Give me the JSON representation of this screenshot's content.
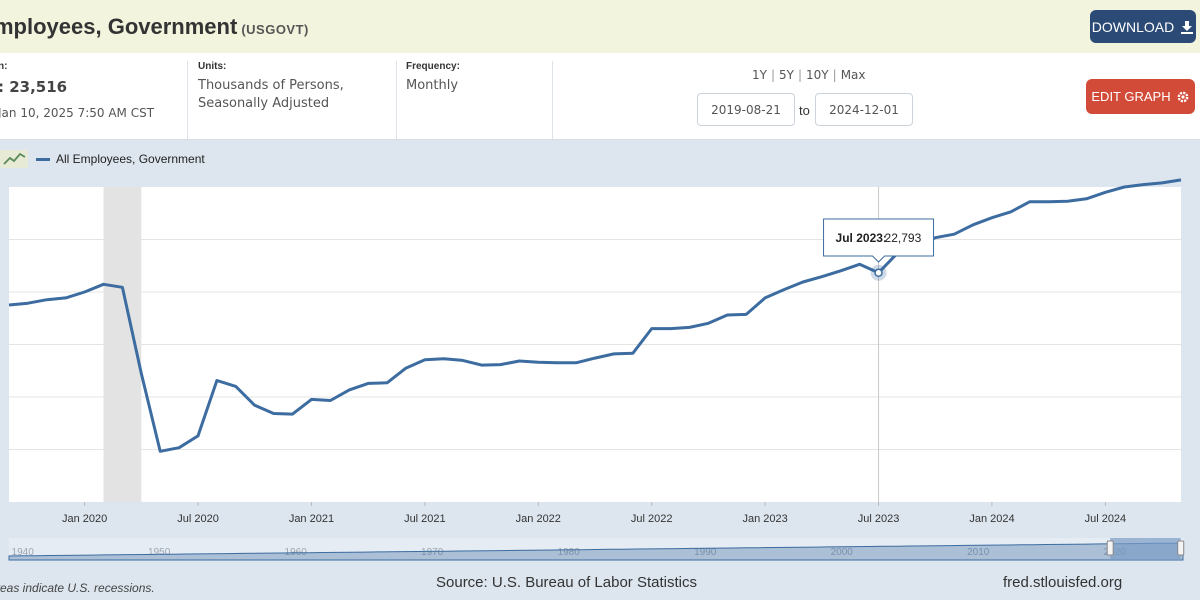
{
  "header": {
    "title": "mployees, Government",
    "series_id": "(USGOVT)",
    "download_label": "DOWNLOAD"
  },
  "meta": {
    "observation_label": "n:",
    "observation_value": ": 23,516",
    "updated": "Jan 10, 2025 7:50 AM CST",
    "units_label": "Units:",
    "units_line1": "Thousands of Persons,",
    "units_line2": "Seasonally Adjusted",
    "frequency_label": "Frequency:",
    "frequency_value": "Monthly"
  },
  "controls": {
    "ranges": [
      "1Y",
      "5Y",
      "10Y",
      "Max"
    ],
    "date_from": "2019-08-21",
    "date_to": "2024-12-01",
    "to_label": "to",
    "edit_label": "EDIT GRAPH"
  },
  "legend": {
    "series_name": "All Employees, Government"
  },
  "footer": {
    "recession_note": "reas indicate U.S. recessions.",
    "source": "Source: U.S. Bureau of Labor Statistics",
    "site": "fred.stlouisfed.org"
  },
  "colors": {
    "series": "#3c6ca0",
    "recession": "#e3e3e3",
    "edit_button": "#d24a38",
    "download_button": "#2b4b76"
  },
  "chart_data": {
    "type": "line",
    "title": "All Employees, Government",
    "ylabel": "Thousands of Persons",
    "x_start": "2019-09",
    "x_end": "2024-11",
    "ylim": [
      20850,
      23520
    ],
    "recession": {
      "start": "2020-02",
      "end": "2020-04"
    },
    "x_ticks": [
      "Jan 2020",
      "Jul 2020",
      "Jan 2021",
      "Jul 2021",
      "Jan 2022",
      "Jul 2022",
      "Jan 2023",
      "Jul 2023",
      "Jan 2024",
      "Jul 2024"
    ],
    "tooltip": {
      "label": "Jul 2023:",
      "value": "22,793",
      "month": "2023-07"
    },
    "series": [
      {
        "name": "All Employees, Government",
        "x": [
          "2019-09",
          "2019-10",
          "2019-11",
          "2019-12",
          "2020-01",
          "2020-02",
          "2020-03",
          "2020-04",
          "2020-05",
          "2020-06",
          "2020-07",
          "2020-08",
          "2020-09",
          "2020-10",
          "2020-11",
          "2020-12",
          "2021-01",
          "2021-02",
          "2021-03",
          "2021-04",
          "2021-05",
          "2021-06",
          "2021-07",
          "2021-08",
          "2021-09",
          "2021-10",
          "2021-11",
          "2021-12",
          "2022-01",
          "2022-02",
          "2022-03",
          "2022-04",
          "2022-05",
          "2022-06",
          "2022-07",
          "2022-08",
          "2022-09",
          "2022-10",
          "2022-11",
          "2022-12",
          "2023-01",
          "2023-02",
          "2023-03",
          "2023-04",
          "2023-05",
          "2023-06",
          "2023-07",
          "2023-08",
          "2023-09",
          "2023-10",
          "2023-11",
          "2023-12",
          "2024-01",
          "2024-02",
          "2024-03",
          "2024-04",
          "2024-05",
          "2024-06",
          "2024-07",
          "2024-08",
          "2024-09",
          "2024-10",
          "2024-11"
        ],
        "values": [
          22520,
          22535,
          22565,
          22580,
          22630,
          22695,
          22670,
          21940,
          21280,
          21310,
          21410,
          21880,
          21830,
          21670,
          21600,
          21595,
          21720,
          21710,
          21800,
          21855,
          21860,
          21985,
          22055,
          22065,
          22050,
          22010,
          22015,
          22045,
          22035,
          22030,
          22030,
          22070,
          22105,
          22110,
          22320,
          22320,
          22330,
          22365,
          22435,
          22440,
          22580,
          22650,
          22715,
          22760,
          22810,
          22865,
          22793,
          22960,
          23020,
          23090,
          23120,
          23200,
          23260,
          23310,
          23395,
          23395,
          23400,
          23420,
          23475,
          23520,
          23540,
          23555,
          23580
        ]
      }
    ],
    "navigator": {
      "labels": [
        "1940",
        "1950",
        "1960",
        "1970",
        "1980",
        "1990",
        "2000",
        "2010",
        "2020"
      ],
      "range": [
        1939,
        2025
      ],
      "selection": [
        "2019-09",
        "2024-11"
      ]
    }
  }
}
